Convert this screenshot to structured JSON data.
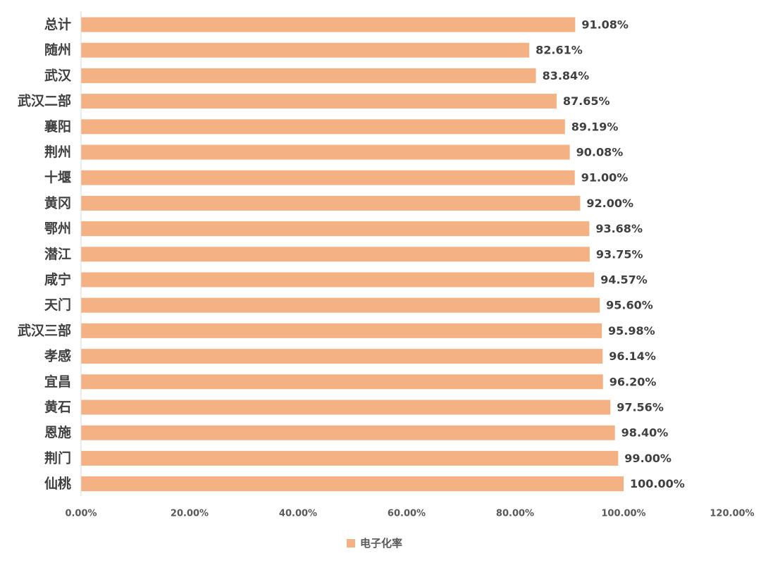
{
  "chart_data": {
    "type": "bar",
    "orientation": "horizontal",
    "categories": [
      "总计",
      "随州",
      "武汉",
      "武汉二部",
      "襄阳",
      "荆州",
      "十堰",
      "黄冈",
      "鄂州",
      "潜江",
      "咸宁",
      "天门",
      "武汉三部",
      "孝感",
      "宜昌",
      "黄石",
      "恩施",
      "荆门",
      "仙桃"
    ],
    "series": [
      {
        "name": "电子化率",
        "values": [
          91.08,
          82.61,
          83.84,
          87.65,
          89.19,
          90.08,
          91.0,
          92.0,
          93.68,
          93.75,
          94.57,
          95.6,
          95.98,
          96.14,
          96.2,
          97.56,
          98.4,
          99.0,
          100.0
        ],
        "data_labels": [
          "91.08%",
          "82.61%",
          "83.84%",
          "87.65%",
          "89.19%",
          "90.08%",
          "91.00%",
          "92.00%",
          "93.68%",
          "93.75%",
          "94.57%",
          "95.60%",
          "95.98%",
          "96.14%",
          "96.20%",
          "97.56%",
          "98.40%",
          "99.00%",
          "100.00%"
        ],
        "color": "#f4b183"
      }
    ],
    "xlim": [
      0,
      120
    ],
    "x_ticks": [
      0,
      20,
      40,
      60,
      80,
      100,
      120
    ],
    "x_tick_labels": [
      "0.00%",
      "20.00%",
      "40.00%",
      "60.00%",
      "80.00%",
      "100.00%",
      "120.00%"
    ],
    "title": "",
    "xlabel": "",
    "ylabel": "",
    "grid": false,
    "legend": "bottom",
    "axis_color": "#d9d9d9"
  }
}
